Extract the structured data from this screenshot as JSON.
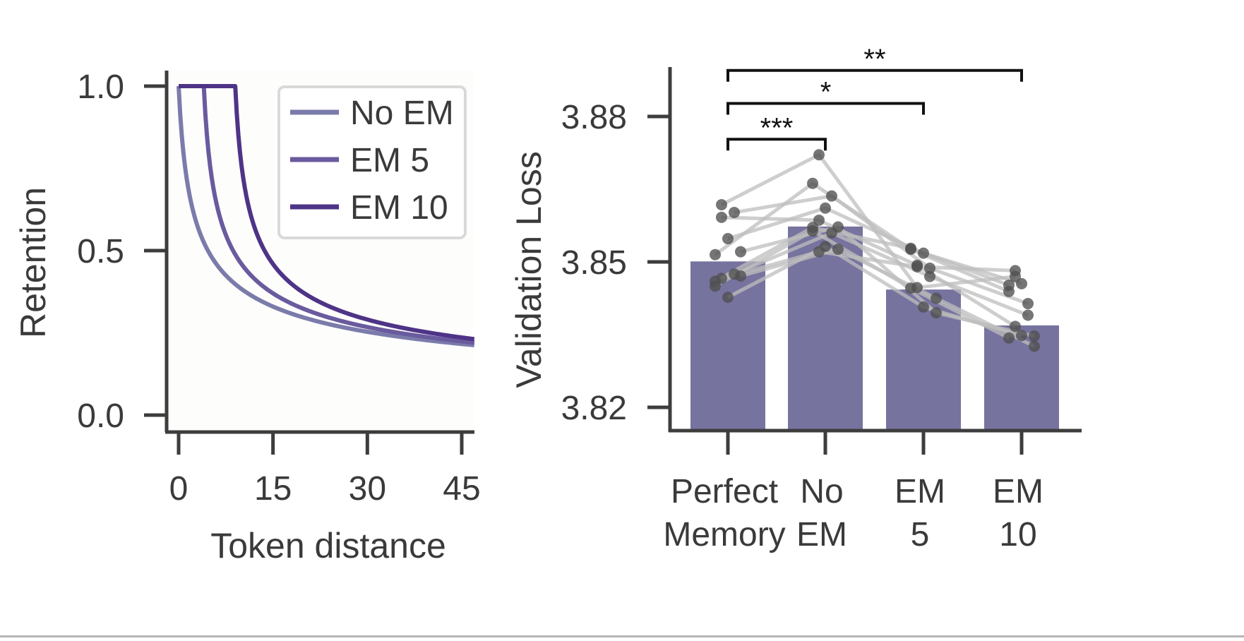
{
  "chart_data": [
    {
      "type": "line",
      "title": "",
      "xlabel": "Token distance",
      "ylabel": "Retention",
      "xlim": [
        -2,
        47
      ],
      "ylim": [
        -0.05,
        1.05
      ],
      "xticks": [
        0,
        15,
        30,
        45
      ],
      "xtick_labels": [
        "0",
        "15",
        "30",
        "45"
      ],
      "yticks": [
        0.0,
        0.5,
        1.0
      ],
      "ytick_labels": [
        "0.0",
        "0.5",
        "1.0"
      ],
      "legend_position": "top-right",
      "decay": "retention = 1 / (distance - window + 1)^0.4, with retention = 1 for distance < window",
      "series": [
        {
          "name": "No EM",
          "window": 0,
          "color": "#7b7bab"
        },
        {
          "name": "EM 5",
          "window": 4,
          "color": "#6a5a9e"
        },
        {
          "name": "EM 10",
          "window": 9,
          "color": "#4e3487"
        }
      ]
    },
    {
      "type": "bar",
      "title": "",
      "xlabel": "",
      "ylabel": "Validation Loss",
      "ylim": [
        3.815,
        3.891
      ],
      "yticks": [
        3.82,
        3.85,
        3.88
      ],
      "ytick_labels": [
        "3.82",
        "3.85",
        "3.88"
      ],
      "categories": [
        {
          "line1": "Perfect",
          "line2": "Memory"
        },
        {
          "line1": "No",
          "line2": "EM"
        },
        {
          "line1": "EM",
          "line2": "5"
        },
        {
          "line1": "EM",
          "line2": "10"
        }
      ],
      "values": [
        3.8501,
        3.8573,
        3.8443,
        3.8369
      ],
      "bar_color": "#77739f",
      "points": [
        [
          3.846,
          3.8571,
          3.8528,
          3.8452
        ],
        [
          3.8466,
          3.8521,
          3.849,
          3.8482
        ],
        [
          3.8427,
          3.8532,
          3.8407,
          3.8348
        ],
        [
          3.8475,
          3.856,
          3.847,
          3.839
        ],
        [
          3.8471,
          3.8526,
          3.8425,
          3.8326
        ],
        [
          3.845,
          3.8564,
          3.8446,
          3.8343
        ],
        [
          3.8592,
          3.8586,
          3.8493,
          3.8367
        ],
        [
          3.8548,
          3.8611,
          3.8518,
          3.8455
        ],
        [
          3.8602,
          3.8636,
          3.8487,
          3.8414
        ],
        [
          3.8521,
          3.8572,
          3.8395,
          3.8347
        ],
        [
          3.8515,
          3.8662,
          3.8526,
          3.8439
        ],
        [
          3.8618,
          3.8721,
          3.8447,
          3.847
        ]
      ],
      "significance": [
        {
          "from": 0,
          "to": 1,
          "label": "***",
          "level": 3.8753
        },
        {
          "from": 0,
          "to": 2,
          "label": "*",
          "level": 3.8827
        },
        {
          "from": 0,
          "to": 3,
          "label": "**",
          "level": 3.8895
        }
      ]
    }
  ]
}
